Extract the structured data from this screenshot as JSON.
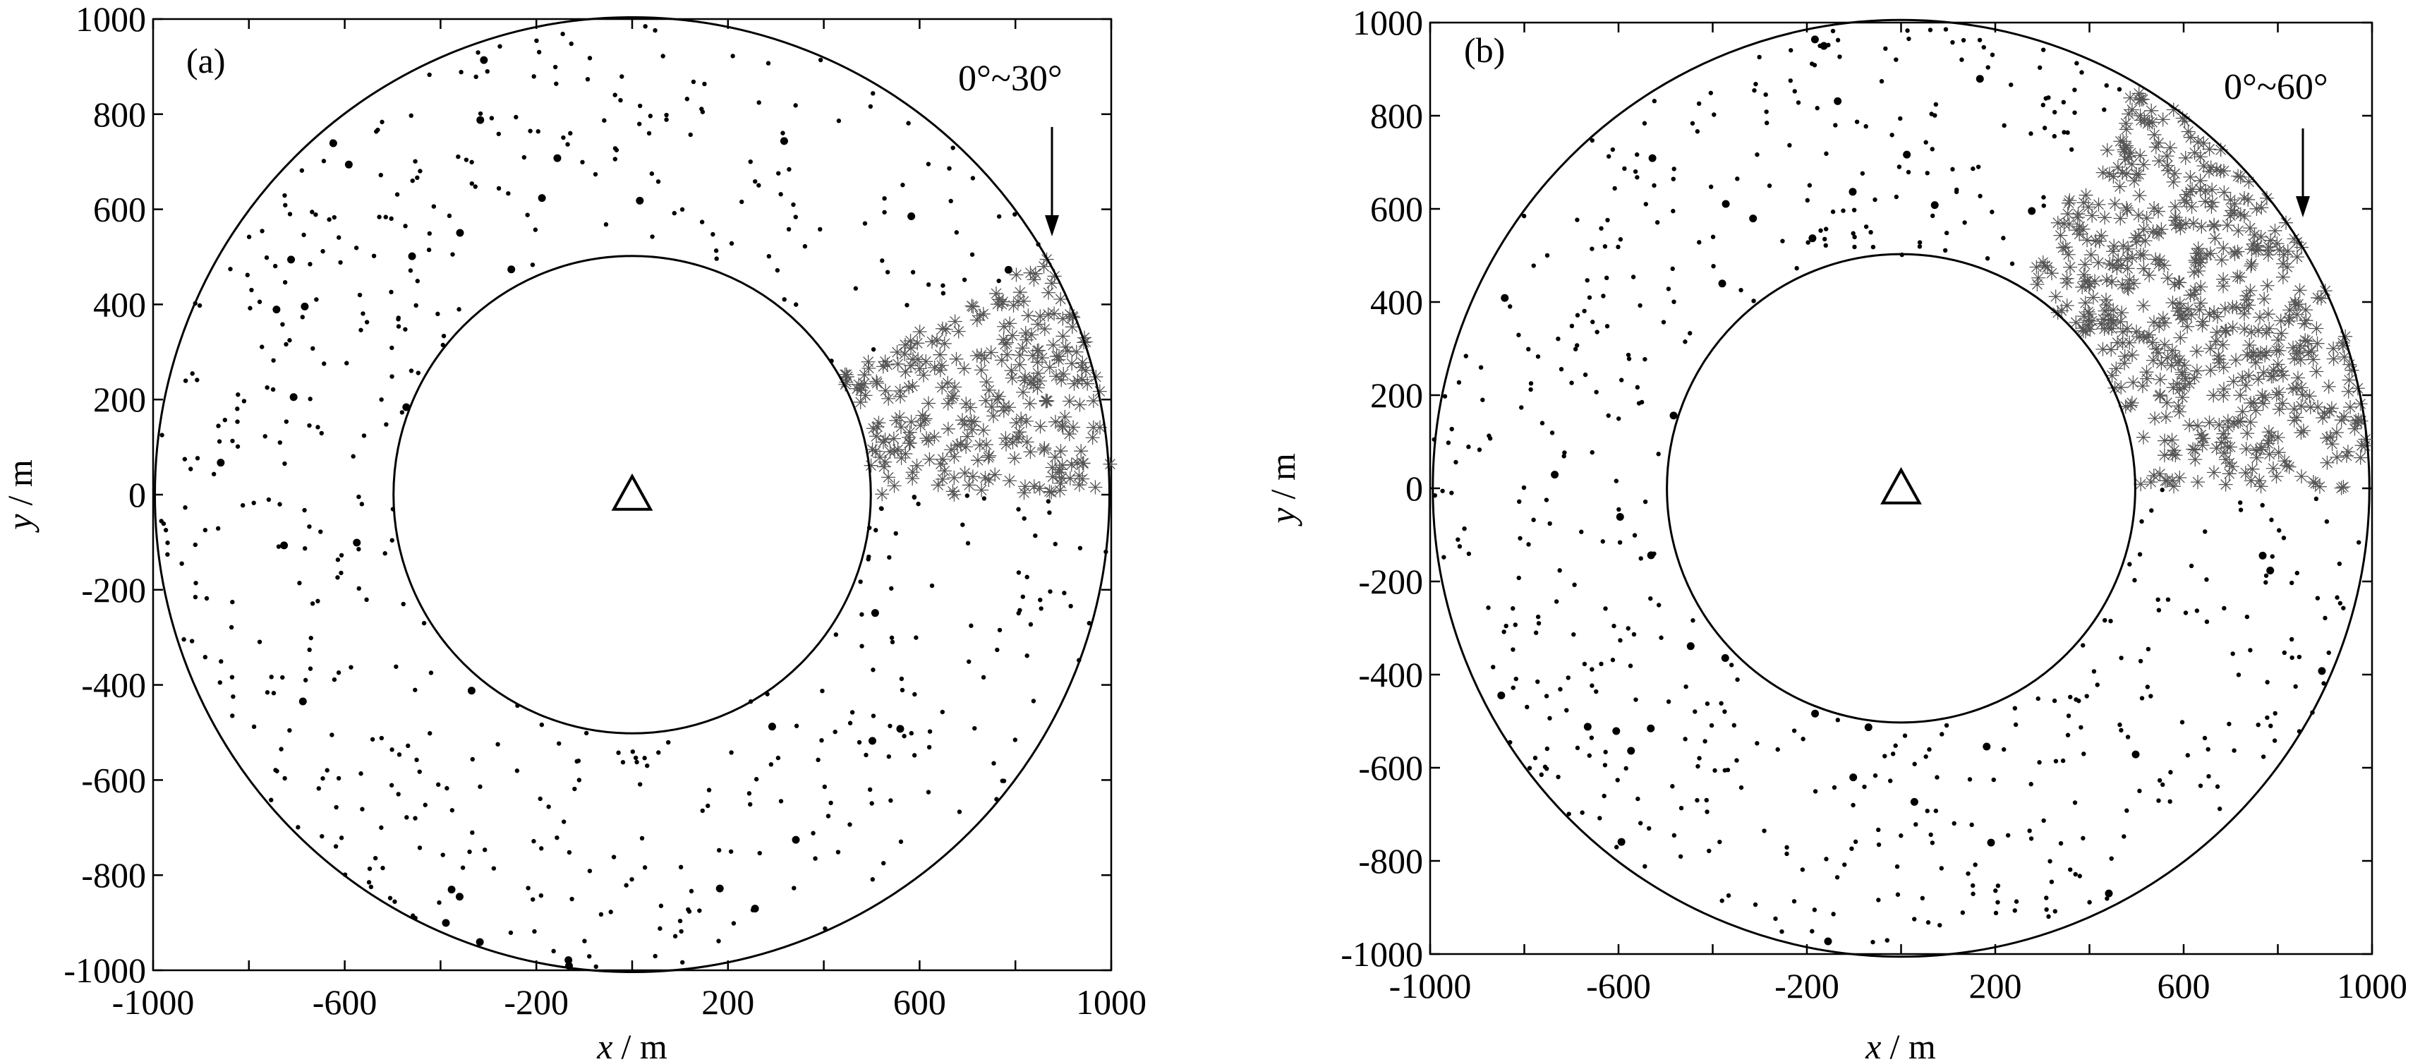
{
  "chart_data": [
    {
      "panel": "(a)",
      "type": "scatter",
      "xlabel_var": "x",
      "xlabel_unit": "/ m",
      "ylabel_var": "y",
      "ylabel_unit": "/ m",
      "xlim": [
        -1000,
        1000
      ],
      "ylim": [
        -1000,
        1000
      ],
      "xticks": [
        "-1000",
        "-600",
        "-200",
        "200",
        "600",
        "1000"
      ],
      "yticks": [
        "1000",
        "800",
        "600",
        "400",
        "200",
        "0",
        "-200",
        "-400",
        "-600",
        "-800",
        "-1000"
      ],
      "annotation": "0°~30°",
      "inner_radius": 500,
      "outer_radius": 1000,
      "sector_deg": [
        0,
        30
      ],
      "center_marker": {
        "x": 0,
        "y": 0,
        "symbol": "triangle"
      },
      "series": [
        {
          "marker": "dot",
          "description_region": "annulus 500–1000 m excluding sector"
        },
        {
          "marker": "asterisk",
          "description_region": "sector 0°–30°"
        }
      ],
      "grid": false
    },
    {
      "panel": "(b)",
      "type": "scatter",
      "xlabel_var": "x",
      "xlabel_unit": "/ m",
      "ylabel_var": "y",
      "ylabel_unit": "/ m",
      "xlim": [
        -1000,
        1000
      ],
      "ylim": [
        -1000,
        1000
      ],
      "xticks": [
        "-1000",
        "-600",
        "-200",
        "200",
        "600",
        "1000"
      ],
      "yticks": [
        "1000",
        "800",
        "600",
        "400",
        "200",
        "0",
        "-200",
        "-400",
        "-600",
        "-800",
        "-1000"
      ],
      "annotation": "0°~60°",
      "inner_radius": 500,
      "outer_radius": 1000,
      "sector_deg": [
        0,
        60
      ],
      "center_marker": {
        "x": 0,
        "y": 0,
        "symbol": "triangle"
      },
      "series": [
        {
          "marker": "dot",
          "description_region": "annulus 500–1000 m excluding sector"
        },
        {
          "marker": "asterisk",
          "description_region": "sector 0°–60°"
        }
      ],
      "grid": false
    }
  ]
}
